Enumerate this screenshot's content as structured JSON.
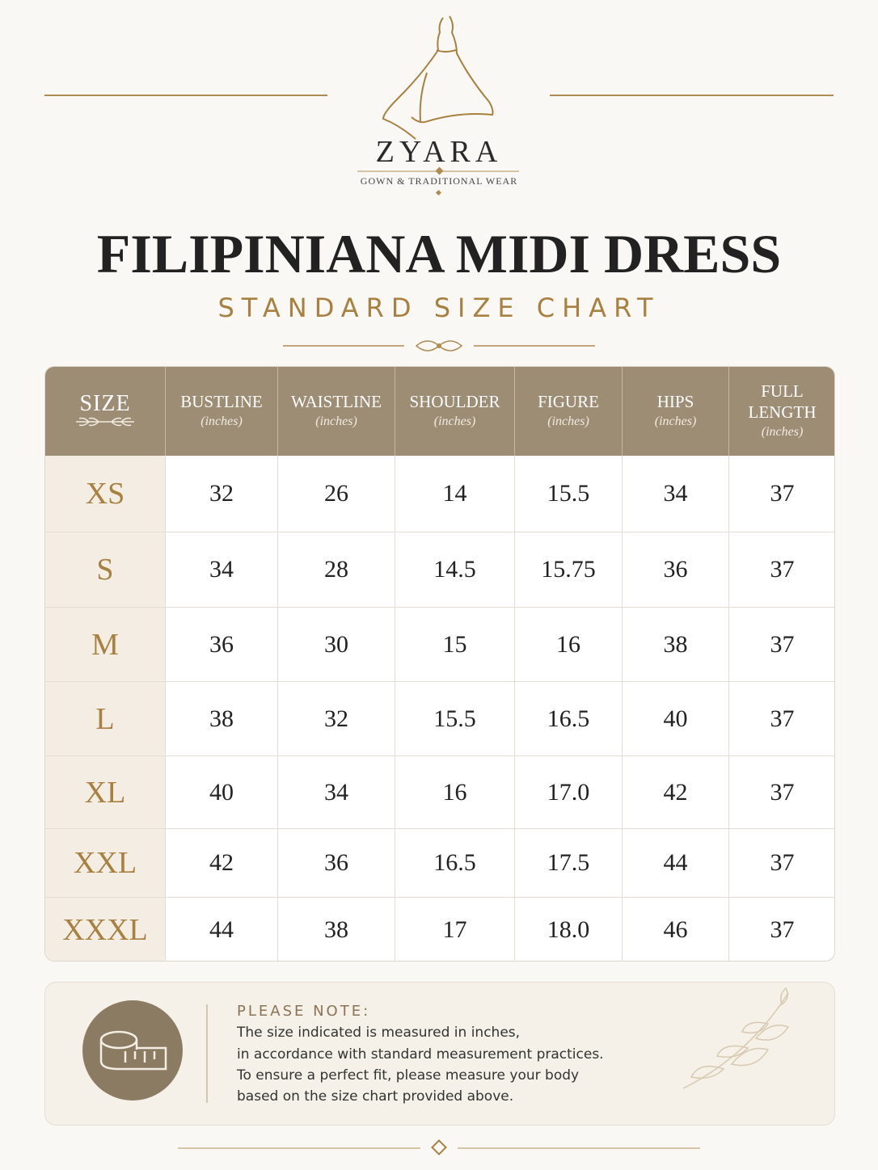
{
  "brand": {
    "name": "ZYARA",
    "tagline": "GOWN & TRADITIONAL WEAR"
  },
  "title": "FILIPINIANA MIDI DRESS",
  "subtitle": "STANDARD SIZE CHART",
  "table": {
    "header": [
      {
        "label": "SIZE"
      },
      {
        "label": "BUSTLINE",
        "unit": "(inches)"
      },
      {
        "label": "WAISTLINE",
        "unit": "(inches)"
      },
      {
        "label": "SHOULDER",
        "unit": "(inches)"
      },
      {
        "label": "FIGURE",
        "unit": "(inches)"
      },
      {
        "label": "HIPS",
        "unit": "(inches)"
      },
      {
        "label": "FULL LENGTH",
        "unit": "(inches)"
      }
    ],
    "rows": [
      [
        "XS",
        "32",
        "26",
        "14",
        "15.5",
        "34",
        "37"
      ],
      [
        "S",
        "34",
        "28",
        "14.5",
        "15.75",
        "36",
        "37"
      ],
      [
        "M",
        "36",
        "30",
        "15",
        "16",
        "38",
        "37"
      ],
      [
        "L",
        "38",
        "32",
        "15.5",
        "16.5",
        "40",
        "37"
      ],
      [
        "XL",
        "40",
        "34",
        "16",
        "17.0",
        "42",
        "37"
      ],
      [
        "XXL",
        "42",
        "36",
        "16.5",
        "17.5",
        "44",
        "37"
      ],
      [
        "XXXL",
        "44",
        "38",
        "17",
        "18.0",
        "46",
        "37"
      ]
    ]
  },
  "note": {
    "heading": "PLEASE NOTE:",
    "lines": [
      "The size indicated is measured in inches,",
      "in accordance with standard measurement practices.",
      "To ensure a perfect fit, please measure your body",
      "based on the size chart provided above."
    ]
  }
}
